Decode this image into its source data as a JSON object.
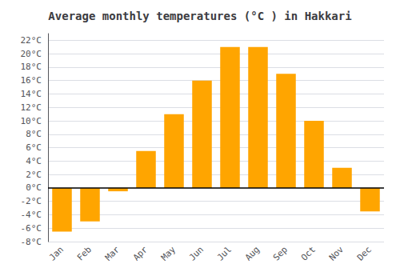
{
  "chart_data": {
    "type": "bar",
    "title": "Average monthly temperatures (°C ) in Hakkari",
    "categories": [
      "Jan",
      "Feb",
      "Mar",
      "Apr",
      "May",
      "Jun",
      "Jul",
      "Aug",
      "Sep",
      "Oct",
      "Nov",
      "Dec"
    ],
    "values": [
      -6.5,
      -5.0,
      -0.5,
      5.5,
      11.0,
      16.0,
      21.0,
      21.0,
      17.0,
      10.0,
      3.0,
      -3.5
    ],
    "color": "#FFA500",
    "ylim": [
      -8,
      23
    ],
    "yticks": [
      {
        "value": -8,
        "label": "-8°C"
      },
      {
        "value": -6,
        "label": "-6°C"
      },
      {
        "value": -4,
        "label": "-4°C"
      },
      {
        "value": -2,
        "label": "-2°C"
      },
      {
        "value": 0,
        "label": "0°C"
      },
      {
        "value": 2,
        "label": "2°C"
      },
      {
        "value": 4,
        "label": "4°C"
      },
      {
        "value": 6,
        "label": "6°C"
      },
      {
        "value": 8,
        "label": "8°C"
      },
      {
        "value": 10,
        "label": "10°C"
      },
      {
        "value": 12,
        "label": "12°C"
      },
      {
        "value": 14,
        "label": "14°C"
      },
      {
        "value": 16,
        "label": "16°C"
      },
      {
        "value": 18,
        "label": "18°C"
      },
      {
        "value": 20,
        "label": "20°C"
      },
      {
        "value": 22,
        "label": "22°C"
      }
    ],
    "grid": true
  }
}
